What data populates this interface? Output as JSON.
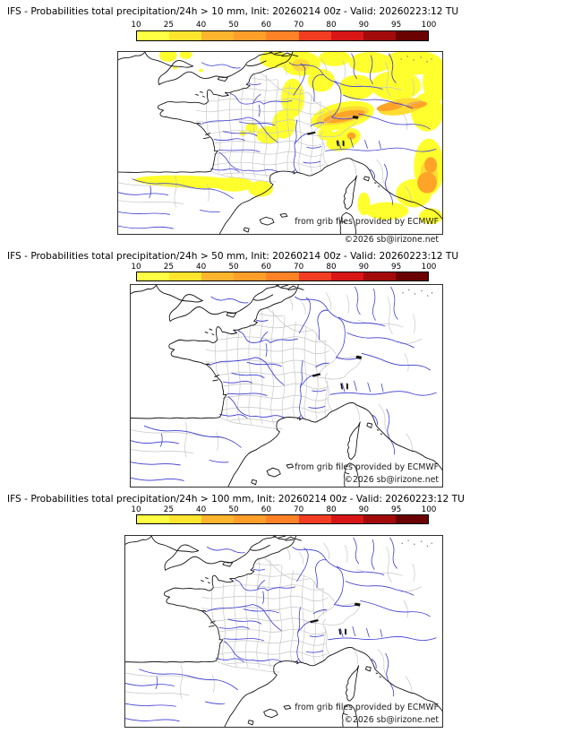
{
  "panels": [
    {
      "title": "IFS - Probabilities total precipitation/24h > 10 mm, Init: 20260214 00z - Valid: 20260223:12 TU"
    },
    {
      "title": "IFS - Probabilities total precipitation/24h > 50 mm, Init: 20260214 00z - Valid: 20260223:12 TU"
    },
    {
      "title": "IFS - Probabilities total precipitation/24h > 100 mm, Init: 20260214 00z - Valid: 20260223:12 TU"
    }
  ],
  "colorbar": {
    "ticks": [
      "10",
      "25",
      "40",
      "50",
      "60",
      "70",
      "80",
      "90",
      "95",
      "100"
    ],
    "colors": [
      "#ffff44",
      "#ffe52e",
      "#ffb42e",
      "#ff9f2a",
      "#ff8326",
      "#f23d23",
      "#d81616",
      "#a30b0b",
      "#6b0202"
    ]
  },
  "attribution": {
    "provider": "from grib files provided by ECMWF",
    "copyright": "©2026 sb@irizone.net"
  },
  "map_colors": {
    "coast": "#141414",
    "river": "#3a3ad2",
    "admin": "#c6c6c6",
    "lake": "#111111",
    "precip_yellow": "#ffff2e",
    "precip_gold": "#ffdc32",
    "precip_orange": "#ffa428"
  }
}
